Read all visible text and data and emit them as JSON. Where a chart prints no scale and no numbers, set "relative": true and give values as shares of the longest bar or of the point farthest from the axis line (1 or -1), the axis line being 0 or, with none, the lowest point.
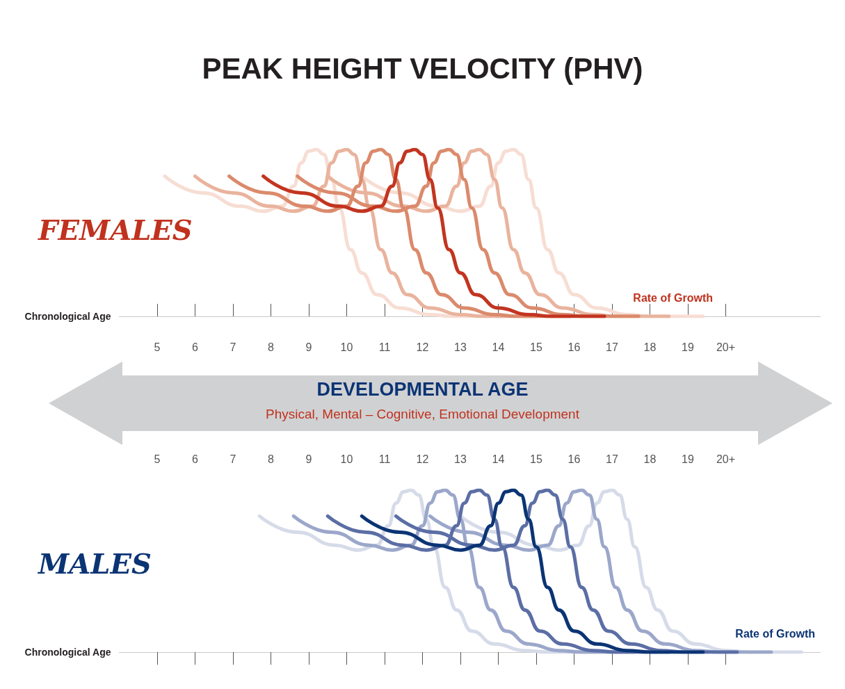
{
  "chart_data": [
    {
      "type": "line",
      "title": "PEAK HEIGHT VELOCITY (PHV)",
      "ylabel": "FEMALES",
      "xlabel": "Chronological Age",
      "relative": true,
      "marker": "none",
      "xlim": [
        4,
        22.5
      ],
      "xticks": [
        5,
        6,
        7,
        8,
        9,
        10,
        11,
        12,
        13,
        14,
        15,
        16,
        17,
        18,
        19,
        {
          "value": 20,
          "label": "20+"
        }
      ],
      "annotations": [
        "Rate of Growth",
        "DEVELOPMENTAL AGE",
        "Physical, Mental – Cognitive, Emotional Development"
      ],
      "series": [
        {
          "color": "#f7ddd3",
          "x": [
            5.2,
            6.2,
            7.2,
            7.8,
            8.3,
            8.6,
            8.8,
            9,
            9.2,
            9.4,
            9.6,
            9.8,
            10.1,
            10.4,
            10.8,
            11.4,
            12.2,
            12.8,
            14.2
          ],
          "values": [
            0.84,
            0.74,
            0.66,
            0.63,
            0.66,
            0.78,
            0.92,
            0.99,
            1,
            0.97,
            0.82,
            0.65,
            0.4,
            0.26,
            0.13,
            0.05,
            0.01,
            0,
            0
          ]
        },
        {
          "color": "#f7ddd3",
          "x": [
            10.4,
            11.4,
            12.4,
            13,
            13.5,
            13.8,
            14,
            14.2,
            14.4,
            14.6,
            14.8,
            15,
            15.3,
            15.6,
            16,
            16.6,
            17.4,
            18,
            19.4
          ],
          "values": [
            0.84,
            0.74,
            0.66,
            0.63,
            0.66,
            0.78,
            0.92,
            0.99,
            1,
            0.97,
            0.82,
            0.65,
            0.4,
            0.26,
            0.13,
            0.05,
            0.01,
            0,
            0
          ]
        },
        {
          "color": "#e9b39d",
          "x": [
            6,
            7,
            8,
            8.6,
            9.1,
            9.4,
            9.6,
            9.8,
            10,
            10.2,
            10.4,
            10.6,
            10.9,
            11.2,
            11.6,
            12.2,
            13,
            13.6,
            15
          ],
          "values": [
            0.84,
            0.74,
            0.66,
            0.63,
            0.66,
            0.78,
            0.92,
            0.99,
            1,
            0.97,
            0.82,
            0.65,
            0.4,
            0.26,
            0.13,
            0.05,
            0.01,
            0,
            0
          ]
        },
        {
          "color": "#e9b39d",
          "x": [
            9.5,
            10.5,
            11.5,
            12.1,
            12.6,
            12.9,
            13.1,
            13.3,
            13.5,
            13.7,
            13.9,
            14.1,
            14.4,
            14.7,
            15.1,
            15.7,
            16.5,
            17.1,
            18.5
          ],
          "values": [
            0.84,
            0.74,
            0.66,
            0.63,
            0.66,
            0.78,
            0.92,
            0.99,
            1,
            0.97,
            0.82,
            0.65,
            0.4,
            0.26,
            0.13,
            0.05,
            0.01,
            0,
            0
          ]
        },
        {
          "color": "#db8a6c",
          "x": [
            6.9,
            7.9,
            8.9,
            9.5,
            10,
            10.3,
            10.5,
            10.7,
            10.9,
            11.1,
            11.3,
            11.5,
            11.8,
            12.1,
            12.5,
            13.1,
            13.9,
            14.5,
            15.9
          ],
          "values": [
            0.84,
            0.74,
            0.66,
            0.63,
            0.66,
            0.78,
            0.92,
            0.99,
            1,
            0.97,
            0.82,
            0.65,
            0.4,
            0.26,
            0.13,
            0.05,
            0.01,
            0,
            0
          ]
        },
        {
          "color": "#db8a6c",
          "x": [
            8.7,
            9.7,
            10.7,
            11.3,
            11.8,
            12.1,
            12.3,
            12.5,
            12.7,
            12.9,
            13.1,
            13.3,
            13.6,
            13.9,
            14.3,
            14.9,
            15.7,
            16.3,
            17.7
          ],
          "values": [
            0.84,
            0.74,
            0.66,
            0.63,
            0.66,
            0.78,
            0.92,
            0.99,
            1,
            0.97,
            0.82,
            0.65,
            0.4,
            0.26,
            0.13,
            0.05,
            0.01,
            0,
            0
          ]
        },
        {
          "color": "#c23520",
          "x": [
            7.8,
            8.8,
            9.8,
            10.4,
            10.9,
            11.2,
            11.4,
            11.6,
            11.8,
            12,
            12.2,
            12.4,
            12.7,
            13,
            13.4,
            14,
            14.8,
            15.4,
            16.8
          ],
          "values": [
            0.84,
            0.74,
            0.66,
            0.63,
            0.66,
            0.78,
            0.92,
            0.99,
            1,
            0.97,
            0.82,
            0.65,
            0.4,
            0.26,
            0.13,
            0.05,
            0.01,
            0,
            0
          ]
        }
      ]
    },
    {
      "type": "line",
      "ylabel": "MALES",
      "xlabel": "Chronological Age",
      "relative": true,
      "marker": "none",
      "xlim": [
        4,
        22.5
      ],
      "xticks": [
        5,
        6,
        7,
        8,
        9,
        10,
        11,
        12,
        13,
        14,
        15,
        16,
        17,
        18,
        19,
        {
          "value": 20,
          "label": "20+"
        }
      ],
      "annotations": [
        "Rate of Growth"
      ],
      "series": [
        {
          "color": "#d6dbe9",
          "x": [
            7.7,
            8.7,
            9.7,
            10.3,
            10.8,
            11.1,
            11.3,
            11.5,
            11.7,
            11.9,
            12.1,
            12.3,
            12.6,
            12.9,
            13.3,
            13.9,
            14.7,
            15.3,
            16.7
          ],
          "values": [
            0.84,
            0.74,
            0.66,
            0.63,
            0.66,
            0.78,
            0.92,
            0.99,
            1,
            0.97,
            0.82,
            0.65,
            0.4,
            0.26,
            0.13,
            0.05,
            0.01,
            0,
            0
          ]
        },
        {
          "color": "#d6dbe9",
          "x": [
            13,
            14,
            15,
            15.6,
            16.1,
            16.4,
            16.6,
            16.8,
            17,
            17.2,
            17.4,
            17.6,
            17.9,
            18.2,
            18.6,
            19.2,
            20,
            20.6,
            22
          ],
          "values": [
            0.84,
            0.74,
            0.66,
            0.63,
            0.66,
            0.78,
            0.92,
            0.99,
            1,
            0.97,
            0.82,
            0.65,
            0.4,
            0.26,
            0.13,
            0.05,
            0.01,
            0,
            0
          ]
        },
        {
          "color": "#9ba7ca",
          "x": [
            8.6,
            9.6,
            10.6,
            11.2,
            11.7,
            12,
            12.2,
            12.4,
            12.6,
            12.8,
            13,
            13.2,
            13.5,
            13.8,
            14.2,
            14.8,
            15.6,
            16.2,
            17.6
          ],
          "values": [
            0.84,
            0.74,
            0.66,
            0.63,
            0.66,
            0.78,
            0.92,
            0.99,
            1,
            0.97,
            0.82,
            0.65,
            0.4,
            0.26,
            0.13,
            0.05,
            0.01,
            0,
            0
          ]
        },
        {
          "color": "#9ba7ca",
          "x": [
            12.2,
            13.2,
            14.2,
            14.8,
            15.3,
            15.6,
            15.8,
            16,
            16.2,
            16.4,
            16.6,
            16.8,
            17.1,
            17.4,
            17.8,
            18.4,
            19.2,
            19.8,
            21.2
          ],
          "values": [
            0.84,
            0.74,
            0.66,
            0.63,
            0.66,
            0.78,
            0.92,
            0.99,
            1,
            0.97,
            0.82,
            0.65,
            0.4,
            0.26,
            0.13,
            0.05,
            0.01,
            0,
            0
          ]
        },
        {
          "color": "#5b6ea5",
          "x": [
            9.5,
            10.5,
            11.5,
            12.1,
            12.6,
            12.9,
            13.1,
            13.3,
            13.5,
            13.7,
            13.9,
            14.1,
            14.4,
            14.7,
            15.1,
            15.7,
            16.5,
            17.1,
            18.5
          ],
          "values": [
            0.84,
            0.74,
            0.66,
            0.63,
            0.66,
            0.78,
            0.92,
            0.99,
            1,
            0.97,
            0.82,
            0.65,
            0.4,
            0.26,
            0.13,
            0.05,
            0.01,
            0,
            0
          ]
        },
        {
          "color": "#5b6ea5",
          "x": [
            11.3,
            12.3,
            13.3,
            13.9,
            14.4,
            14.7,
            14.9,
            15.1,
            15.3,
            15.5,
            15.7,
            15.9,
            16.2,
            16.5,
            16.9,
            17.5,
            18.3,
            18.9,
            20.3
          ],
          "values": [
            0.84,
            0.74,
            0.66,
            0.63,
            0.66,
            0.78,
            0.92,
            0.99,
            1,
            0.97,
            0.82,
            0.65,
            0.4,
            0.26,
            0.13,
            0.05,
            0.01,
            0,
            0
          ]
        },
        {
          "color": "#0b3474",
          "x": [
            10.4,
            11.4,
            12.4,
            13,
            13.5,
            13.8,
            14,
            14.2,
            14.4,
            14.6,
            14.8,
            15,
            15.3,
            15.6,
            16,
            16.6,
            17.4,
            18,
            19.4
          ],
          "values": [
            0.84,
            0.74,
            0.66,
            0.63,
            0.66,
            0.78,
            0.92,
            0.99,
            1,
            0.97,
            0.82,
            0.65,
            0.4,
            0.26,
            0.13,
            0.05,
            0.01,
            0,
            0
          ]
        }
      ]
    }
  ]
}
